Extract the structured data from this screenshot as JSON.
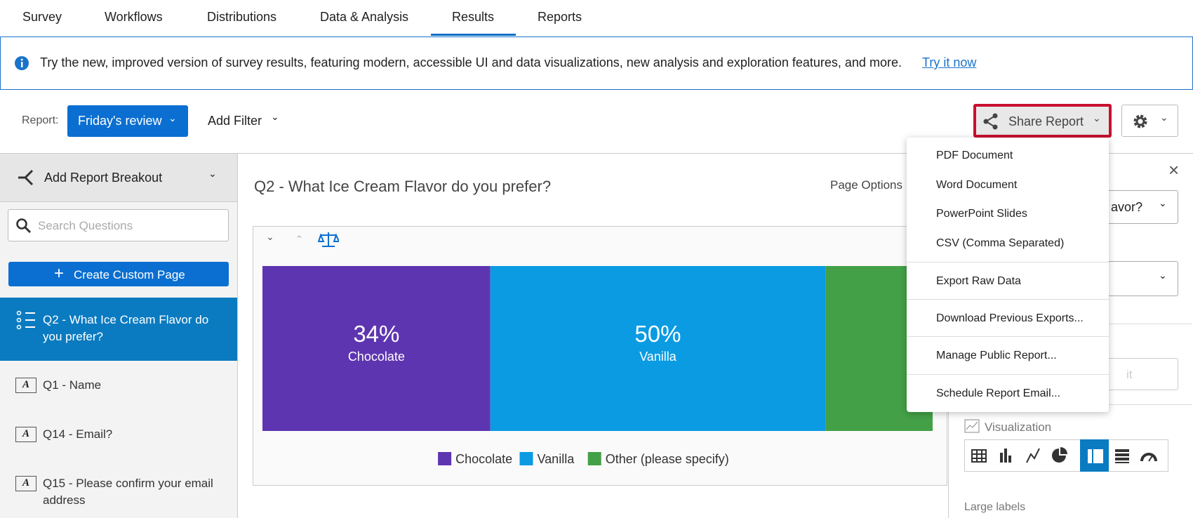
{
  "nav": {
    "tabs": [
      "Survey",
      "Workflows",
      "Distributions",
      "Data & Analysis",
      "Results",
      "Reports"
    ]
  },
  "banner": {
    "text": "Try the new, improved version of survey results, featuring modern, accessible UI and data visualizations, new analysis and exploration features, and more.",
    "link": "Try it now"
  },
  "toolbar": {
    "report_label": "Report:",
    "report": "Friday's review",
    "add_filter": "Add Filter",
    "share": "Share Report"
  },
  "sidebar": {
    "breakout": "Add Report Breakout",
    "search_placeholder": "Search Questions",
    "create": "Create Custom Page",
    "items": [
      "Q2 - What Ice Cream Flavor do you prefer?",
      "Q1 - Name",
      "Q14 - Email?",
      "Q15 - Please confirm your email address"
    ]
  },
  "main": {
    "title": "Q2 - What Ice Cream Flavor do you prefer?",
    "page_options": "Page Options"
  },
  "chart_data": {
    "type": "stacked-bar",
    "orientation": "horizontal",
    "xlim": [
      0,
      100
    ],
    "series": [
      {
        "name": "Chocolate",
        "color": "#5e35b1",
        "values": [
          34
        ],
        "value_labels": [
          "34%"
        ]
      },
      {
        "name": "Vanilla",
        "color": "#0a9be3",
        "values": [
          50
        ],
        "value_labels": [
          "50%"
        ]
      },
      {
        "name": "Other (please specify)",
        "color": "#43a047",
        "values": [
          16
        ]
      }
    ]
  },
  "share_menu": {
    "items": [
      "PDF Document",
      "Word Document",
      "PowerPoint Slides",
      "CSV (Comma Separated)",
      "Export Raw Data",
      "Download Previous Exports...",
      "Manage Public Report...",
      "Schedule Report Email..."
    ]
  },
  "side_panel": {
    "dropdown": "avor?",
    "input": "it",
    "visualization": "Visualization",
    "large_labels": "Large labels"
  }
}
